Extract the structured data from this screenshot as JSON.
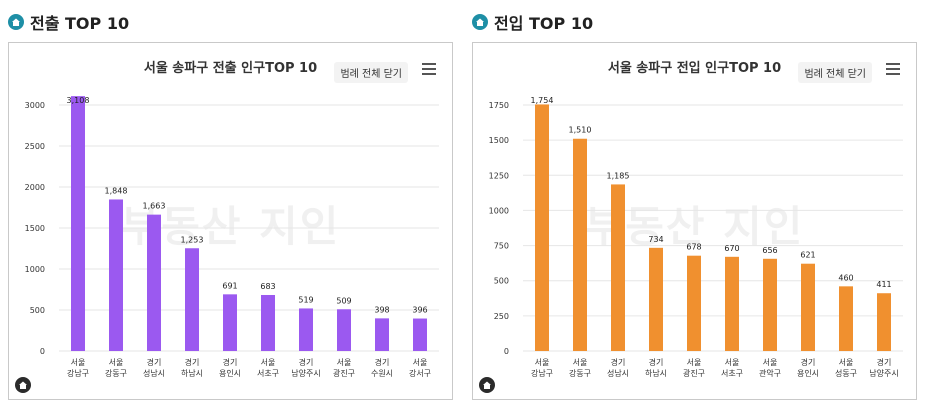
{
  "sections": [
    {
      "heading": "전출 TOP 10",
      "chart_title": "서울 송파구 전출 인구TOP 10",
      "legend_button": "범례 전체 닫기",
      "watermark": "부동산 지인"
    },
    {
      "heading": "전입 TOP 10",
      "chart_title": "서울 송파구 전입 인구TOP 10",
      "legend_button": "범례 전체 닫기",
      "watermark": "부동산 지인"
    }
  ],
  "chart_data": [
    {
      "type": "bar",
      "title": "서울 송파구 전출 인구TOP 10",
      "color": "#9b59f0",
      "ylim": [
        0,
        3000
      ],
      "yticks": [
        0,
        500,
        1000,
        1500,
        2000,
        2500,
        3000
      ],
      "categories": [
        [
          "서울",
          "강남구"
        ],
        [
          "서울",
          "강동구"
        ],
        [
          "경기",
          "성남시"
        ],
        [
          "경기",
          "하남시"
        ],
        [
          "경기",
          "용인시"
        ],
        [
          "서울",
          "서초구"
        ],
        [
          "경기",
          "남양주시"
        ],
        [
          "서울",
          "광진구"
        ],
        [
          "경기",
          "수원시"
        ],
        [
          "서울",
          "강서구"
        ]
      ],
      "values": [
        3108,
        1848,
        1663,
        1253,
        691,
        683,
        519,
        509,
        398,
        396
      ],
      "labels": [
        "3,108",
        "1,848",
        "1,663",
        "1,253",
        "691",
        "683",
        "519",
        "509",
        "398",
        "396"
      ],
      "grid": true
    },
    {
      "type": "bar",
      "title": "서울 송파구 전입 인구TOP 10",
      "color": "#f0902f",
      "ylim": [
        0,
        1750
      ],
      "yticks": [
        0,
        250,
        500,
        750,
        1000,
        1250,
        1500,
        1750
      ],
      "categories": [
        [
          "서울",
          "강남구"
        ],
        [
          "서울",
          "강동구"
        ],
        [
          "경기",
          "성남시"
        ],
        [
          "경기",
          "하남시"
        ],
        [
          "서울",
          "광진구"
        ],
        [
          "서울",
          "서초구"
        ],
        [
          "서울",
          "관악구"
        ],
        [
          "경기",
          "용인시"
        ],
        [
          "서울",
          "성동구"
        ],
        [
          "경기",
          "남양주시"
        ]
      ],
      "values": [
        1754,
        1510,
        1185,
        734,
        678,
        670,
        656,
        621,
        460,
        411
      ],
      "labels": [
        "1,754",
        "1,510",
        "1,185",
        "734",
        "678",
        "670",
        "656",
        "621",
        "460",
        "411"
      ],
      "grid": true
    }
  ]
}
